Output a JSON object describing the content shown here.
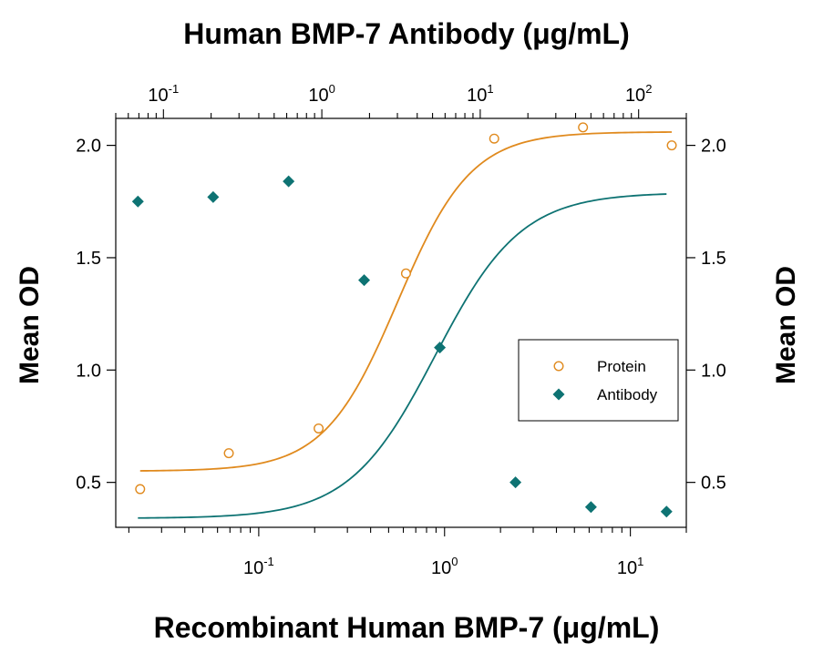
{
  "chart_data": {
    "type": "scatter",
    "title_top": "Human BMP-7 Antibody (μg/mL)",
    "xlabel": "Recombinant Human BMP-7 (μg/mL)",
    "ylabel_left": "Mean OD",
    "ylabel_right": "Mean OD",
    "ylim": [
      0.3,
      2.12
    ],
    "y_ticks": [
      "0.5",
      "1.0",
      "1.5",
      "2.0"
    ],
    "x_bottom": {
      "scale": "log",
      "xlim": [
        0.017,
        20
      ],
      "tick_labels": [
        {
          "value": 0.1,
          "base": "10",
          "exp": "-1"
        },
        {
          "value": 1,
          "base": "10",
          "exp": "0"
        },
        {
          "value": 10,
          "base": "10",
          "exp": "1"
        }
      ]
    },
    "x_top": {
      "scale": "log",
      "xlim": [
        0.05,
        200
      ],
      "tick_labels": [
        {
          "value": 0.1,
          "base": "10",
          "exp": "-1"
        },
        {
          "value": 1,
          "base": "10",
          "exp": "0"
        },
        {
          "value": 10,
          "base": "10",
          "exp": "1"
        },
        {
          "value": 100,
          "base": "10",
          "exp": "2"
        }
      ]
    },
    "legend": {
      "position": "right",
      "entries": [
        {
          "name": "Protein",
          "marker": "open-circle",
          "color": "#e08a1e"
        },
        {
          "name": "Antibody",
          "marker": "filled-diamond",
          "color": "#0e7373"
        }
      ]
    },
    "series": [
      {
        "name": "Protein",
        "axis": "bottom",
        "color": "#e08a1e",
        "x": [
          0.023,
          0.069,
          0.21,
          0.62,
          1.85,
          5.56,
          16.7
        ],
        "y": [
          0.47,
          0.63,
          0.74,
          1.43,
          2.03,
          2.08,
          2.0
        ],
        "fit": {
          "bottom": 0.55,
          "top": 2.06,
          "ec50": 0.56,
          "hill": 2.2
        }
      },
      {
        "name": "Antibody",
        "axis": "top",
        "color": "#0e7373",
        "x": [
          0.069,
          0.206,
          0.617,
          1.85,
          5.56,
          16.7,
          50,
          150
        ],
        "y": [
          1.75,
          1.77,
          1.84,
          1.4,
          1.1,
          0.5,
          0.39,
          0.37
        ],
        "fit": {
          "bottom": 0.34,
          "top": 1.79,
          "ec50": 5.2,
          "hill": 1.6
        }
      }
    ]
  }
}
